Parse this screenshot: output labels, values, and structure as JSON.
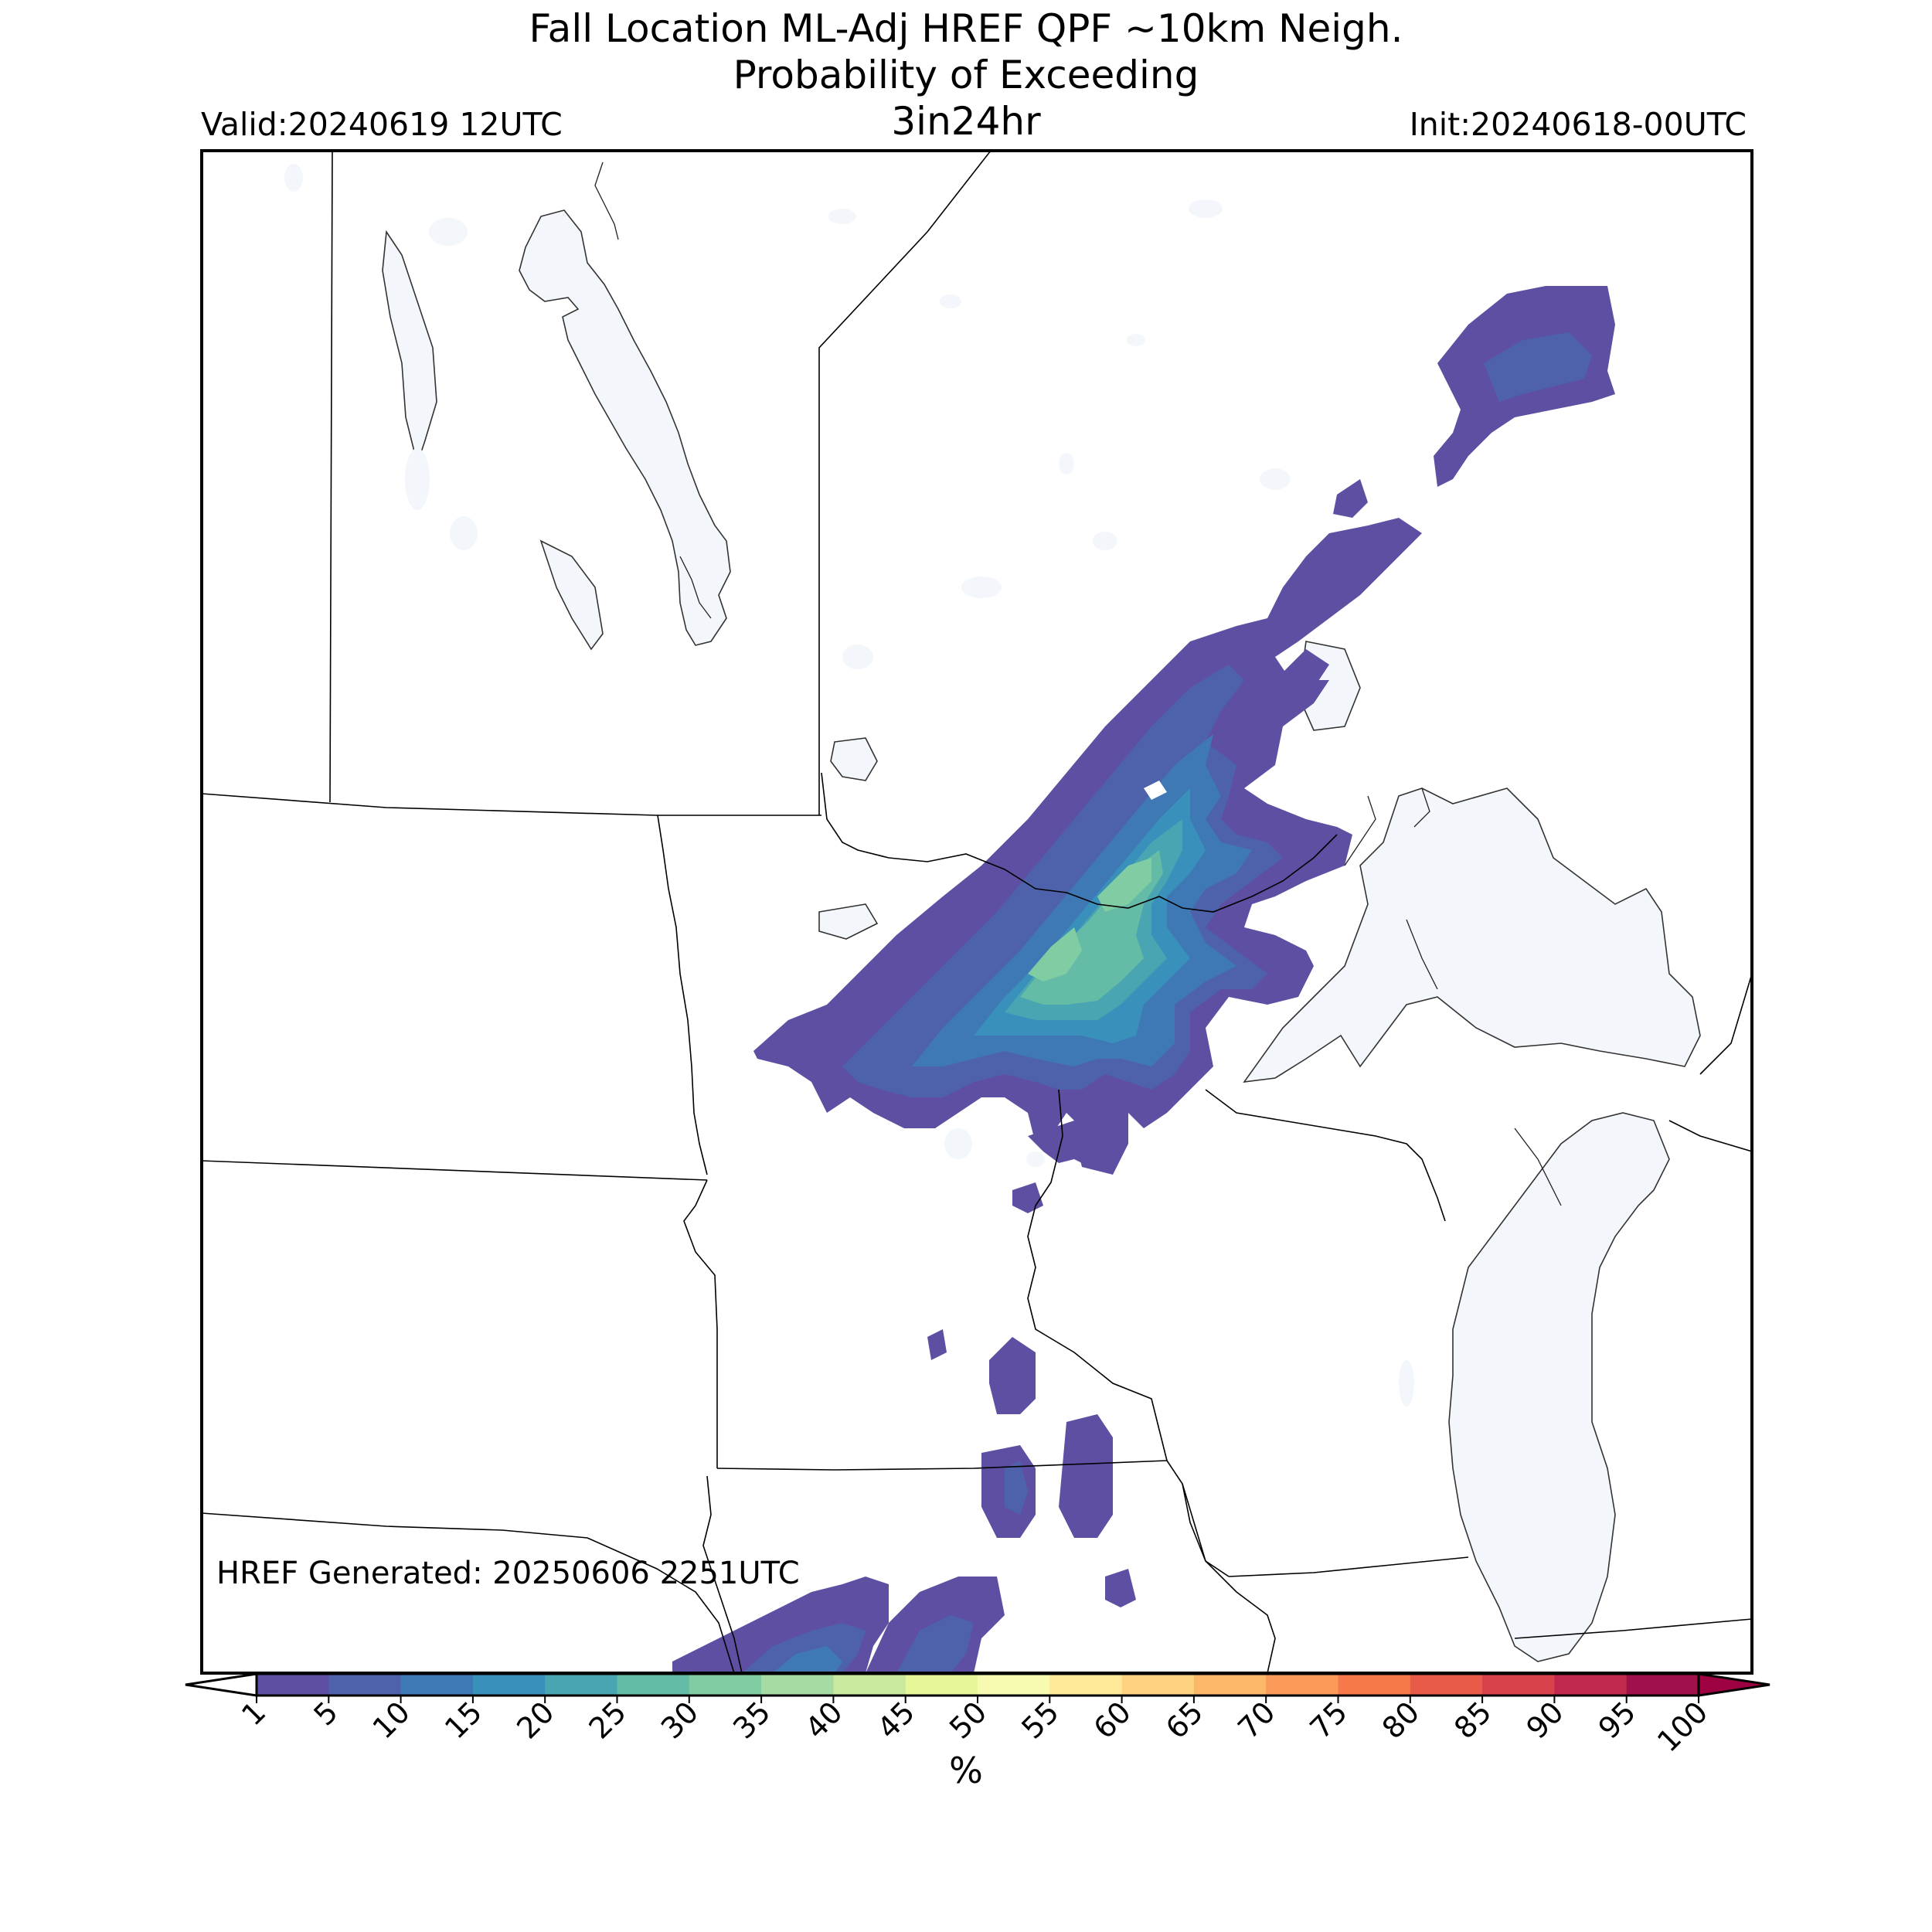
{
  "title": {
    "line1": "Fall Location ML-Adj HREF QPF ~10km Neigh.",
    "line2": "Probability of Exceeding",
    "line3": "3in24hr"
  },
  "valid_label": "Valid:20240619 12UTC",
  "init_label": "Init:20240618-00UTC",
  "generated_label": "HREF Generated: 20250606 2251UTC",
  "colorbar": {
    "unit": "%",
    "levels": [
      "1",
      "5",
      "10",
      "15",
      "20",
      "25",
      "30",
      "35",
      "40",
      "45",
      "50",
      "55",
      "60",
      "65",
      "70",
      "75",
      "80",
      "85",
      "90",
      "95",
      "100"
    ],
    "colors": [
      "#5e4fa2",
      "#4e62ac",
      "#3f79b5",
      "#3890bb",
      "#4aa5b2",
      "#64bba6",
      "#80cda4",
      "#a6dba4",
      "#c8e99e",
      "#e6f598",
      "#f7fbb2",
      "#fee999",
      "#fed281",
      "#fdb768",
      "#fb9a58",
      "#f67a49",
      "#e85b49",
      "#d7424c",
      "#c0294d",
      "#a0104a"
    ],
    "under_color": "#ffffff",
    "over_color": "#9e0142"
  },
  "map": {
    "region": "Upper Midwest / Great Lakes",
    "land_color": "#ffffff",
    "water_color": "#f3f7fb",
    "border_color": "#000000"
  },
  "chart_data": {
    "type": "heatmap",
    "title": "Fall Location ML-Adj HREF QPF ~10km Neigh. Probability of Exceeding 3in24hr",
    "value_unit": "%",
    "levels": [
      1,
      5,
      10,
      15,
      20,
      25,
      30,
      35,
      40,
      45,
      50,
      55,
      60,
      65,
      70,
      75,
      80,
      85,
      90,
      95,
      100
    ],
    "max_probability_approx": 35,
    "features": [
      {
        "area": "far northwest Ontario (northeast of map)",
        "probability_range": [
          1,
          15
        ]
      },
      {
        "area": "northwest Ontario / northeast Minnesota arrowhead",
        "probability_range": [
          1,
          35
        ]
      },
      {
        "area": "western Lake Superior / north shore",
        "probability_range": [
          1,
          20
        ]
      },
      {
        "area": "northwest Wisconsin",
        "probability_range": [
          1,
          10
        ]
      },
      {
        "area": "southeast Minnesota / western Wisconsin",
        "probability_range": [
          1,
          10
        ]
      },
      {
        "area": "northern Iowa (south edge)",
        "probability_range": [
          1,
          15
        ]
      }
    ]
  }
}
